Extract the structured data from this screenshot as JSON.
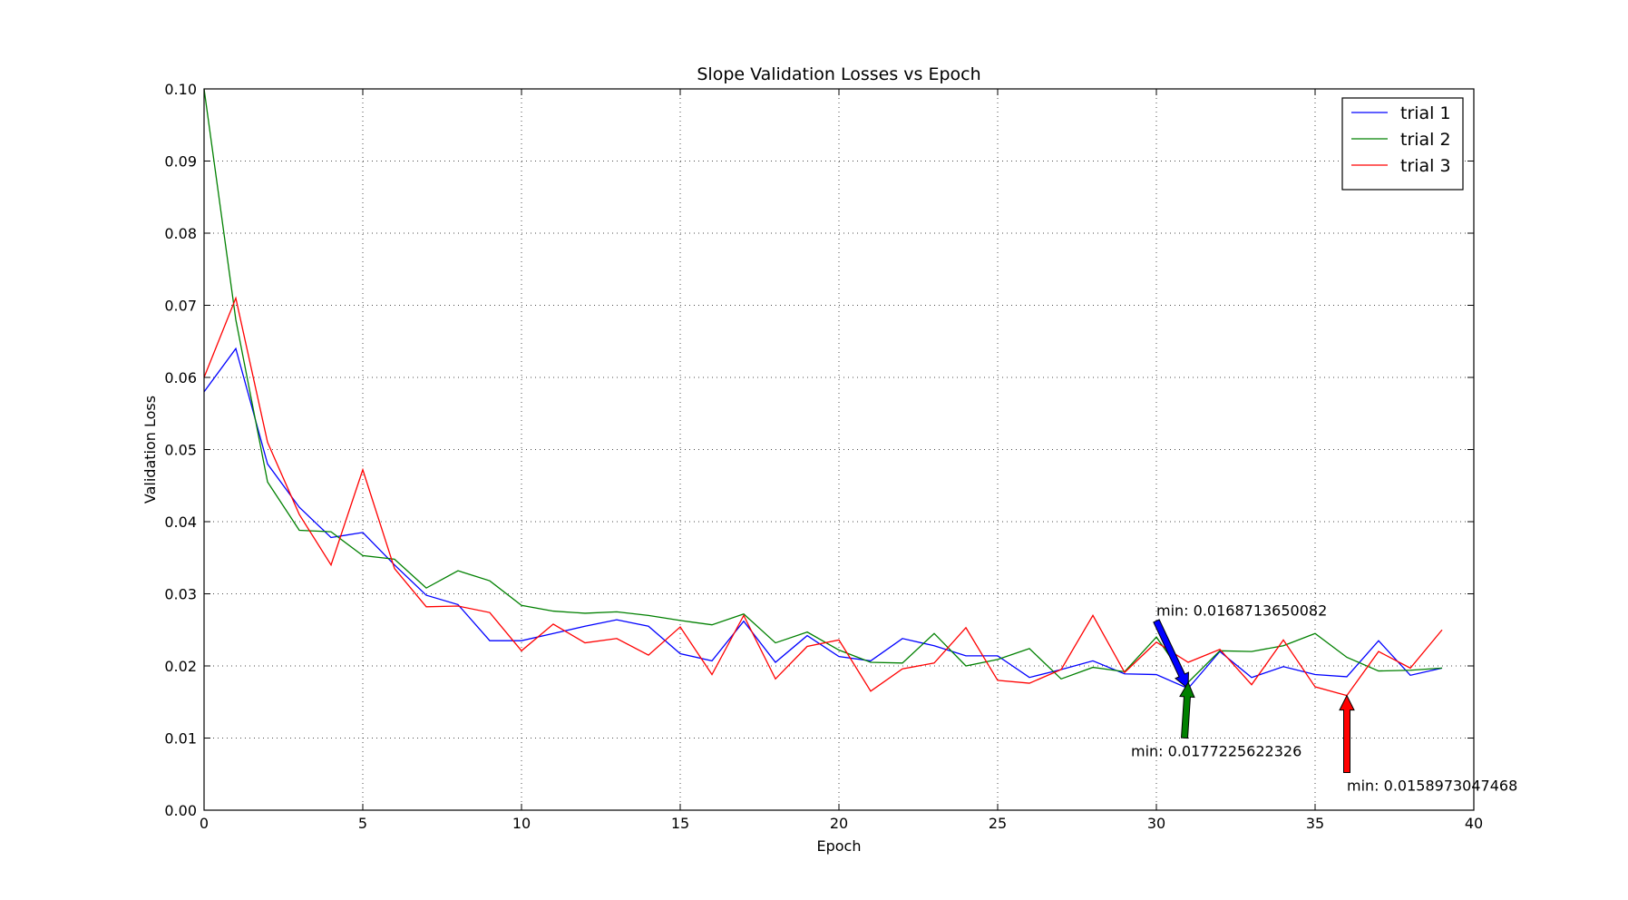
{
  "chart_data": {
    "type": "line",
    "title": "Slope Validation Losses vs Epoch",
    "xlabel": "Epoch",
    "ylabel": "Validation Loss",
    "xlim": [
      0,
      40
    ],
    "ylim": [
      0,
      0.1
    ],
    "x_ticks": [
      0,
      5,
      10,
      15,
      20,
      25,
      30,
      35,
      40
    ],
    "x_tick_labels": [
      "0",
      "5",
      "10",
      "15",
      "20",
      "25",
      "30",
      "35",
      "40"
    ],
    "y_ticks": [
      0,
      0.01,
      0.02,
      0.03,
      0.04,
      0.05,
      0.06,
      0.07,
      0.08,
      0.09,
      0.1
    ],
    "y_tick_labels": [
      "0.00",
      "0.01",
      "0.02",
      "0.03",
      "0.04",
      "0.05",
      "0.06",
      "0.07",
      "0.08",
      "0.09",
      "0.10"
    ],
    "grid": true,
    "legend_position": "top-right",
    "x": [
      0,
      1,
      2,
      3,
      4,
      5,
      6,
      7,
      8,
      9,
      10,
      11,
      12,
      13,
      14,
      15,
      16,
      17,
      18,
      19,
      20,
      21,
      22,
      23,
      24,
      25,
      26,
      27,
      28,
      29,
      30,
      31,
      32,
      33,
      34,
      35,
      36,
      37,
      38,
      39
    ],
    "series": [
      {
        "name": "trial 1",
        "color": "#0000ff",
        "values": [
          0.058,
          0.064,
          0.048,
          0.042,
          0.0378,
          0.0385,
          0.034,
          0.0298,
          0.0285,
          0.0235,
          0.0235,
          0.0245,
          0.0255,
          0.0264,
          0.0255,
          0.0217,
          0.0207,
          0.0262,
          0.0205,
          0.0242,
          0.0213,
          0.0207,
          0.0238,
          0.0228,
          0.0214,
          0.0214,
          0.0184,
          0.0195,
          0.0207,
          0.0189,
          0.0188,
          0.0168713650082,
          0.022,
          0.0184,
          0.0199,
          0.0188,
          0.0185,
          0.0235,
          0.0187,
          0.0197
        ]
      },
      {
        "name": "trial 2",
        "color": "#008000",
        "values": [
          0.1,
          0.068,
          0.0455,
          0.0388,
          0.0386,
          0.0353,
          0.0348,
          0.0308,
          0.0332,
          0.0318,
          0.0284,
          0.0276,
          0.0273,
          0.0275,
          0.027,
          0.0263,
          0.0257,
          0.0272,
          0.0232,
          0.0247,
          0.0222,
          0.0205,
          0.0204,
          0.0245,
          0.02,
          0.0209,
          0.0224,
          0.0182,
          0.0198,
          0.0192,
          0.024,
          0.0177225622326,
          0.0221,
          0.022,
          0.0228,
          0.0245,
          0.0212,
          0.0193,
          0.0194,
          0.0197
        ]
      },
      {
        "name": "trial 3",
        "color": "#ff0000",
        "values": [
          0.06,
          0.071,
          0.051,
          0.041,
          0.034,
          0.0472,
          0.0335,
          0.0282,
          0.0283,
          0.0274,
          0.0221,
          0.0258,
          0.0232,
          0.0238,
          0.0215,
          0.0254,
          0.0188,
          0.027,
          0.0182,
          0.0227,
          0.0236,
          0.0165,
          0.0196,
          0.0204,
          0.0253,
          0.018,
          0.0176,
          0.0195,
          0.027,
          0.0191,
          0.0233,
          0.0205,
          0.0223,
          0.0174,
          0.0236,
          0.0171,
          0.0158973047468,
          0.022,
          0.0197,
          0.025
        ]
      }
    ],
    "annotations": [
      {
        "series": "trial 1",
        "text": "min: 0.0168713650082",
        "point_x": 31,
        "point_y": 0.0168713650082,
        "text_x": 30,
        "text_y": 0.027,
        "color": "#0000ff"
      },
      {
        "series": "trial 2",
        "text": "min: 0.0177225622326",
        "point_x": 31,
        "point_y": 0.0177225622326,
        "text_x": 29.2,
        "text_y": 0.0075,
        "color": "#008000"
      },
      {
        "series": "trial 3",
        "text": "min: 0.0158973047468",
        "point_x": 36,
        "point_y": 0.0158973047468,
        "text_x": 36,
        "text_y": 0.0027,
        "color": "#ff0000"
      }
    ]
  }
}
